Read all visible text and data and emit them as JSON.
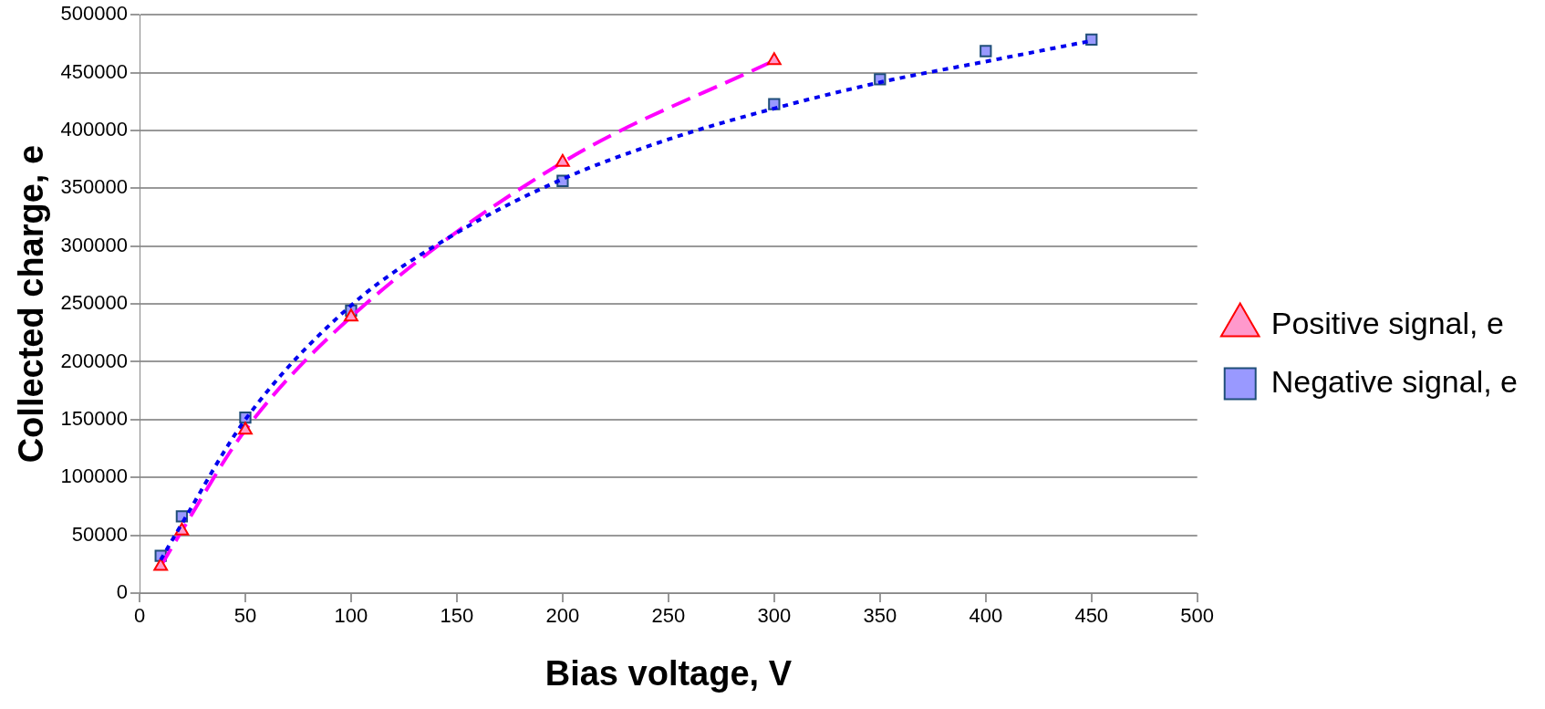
{
  "chart_data": {
    "type": "scatter",
    "xlabel": "Bias voltage, V",
    "ylabel": "Collected charge, e",
    "xlim": [
      0,
      500
    ],
    "xticks": [
      0,
      50,
      100,
      150,
      200,
      250,
      300,
      350,
      400,
      450,
      500
    ],
    "ylim": [
      0,
      500000
    ],
    "yticks": [
      0,
      50000,
      100000,
      150000,
      200000,
      250000,
      300000,
      350000,
      400000,
      450000,
      500000
    ],
    "grid": "y",
    "legend": "right",
    "series": [
      {
        "type": "line",
        "color": "#0000ee",
        "line_style": "dotted",
        "marker": "none",
        "x": [
          10,
          20,
          50,
          100,
          150,
          200,
          250,
          300,
          350,
          400,
          450
        ],
        "values": [
          28700,
          60000,
          150000,
          248700,
          311500,
          358000,
          392300,
          419000,
          441600,
          459600,
          477500
        ]
      },
      {
        "type": "scatter",
        "name": "Negative signal, e",
        "color": "#9999ff",
        "marker": "square",
        "x": [
          10,
          20,
          50,
          100,
          200,
          300,
          350,
          400,
          450
        ],
        "values": [
          32300,
          66400,
          151700,
          244200,
          356400,
          422800,
          444300,
          468600,
          478500
        ]
      },
      {
        "type": "line",
        "name": "Positive signal, e",
        "color": "#ff00ff",
        "line_style": "dashed",
        "marker": "triangle",
        "x": [
          10,
          20,
          50,
          100,
          200,
          300
        ],
        "values": [
          23300,
          53900,
          141000,
          238800,
          372500,
          460500
        ]
      }
    ]
  }
}
